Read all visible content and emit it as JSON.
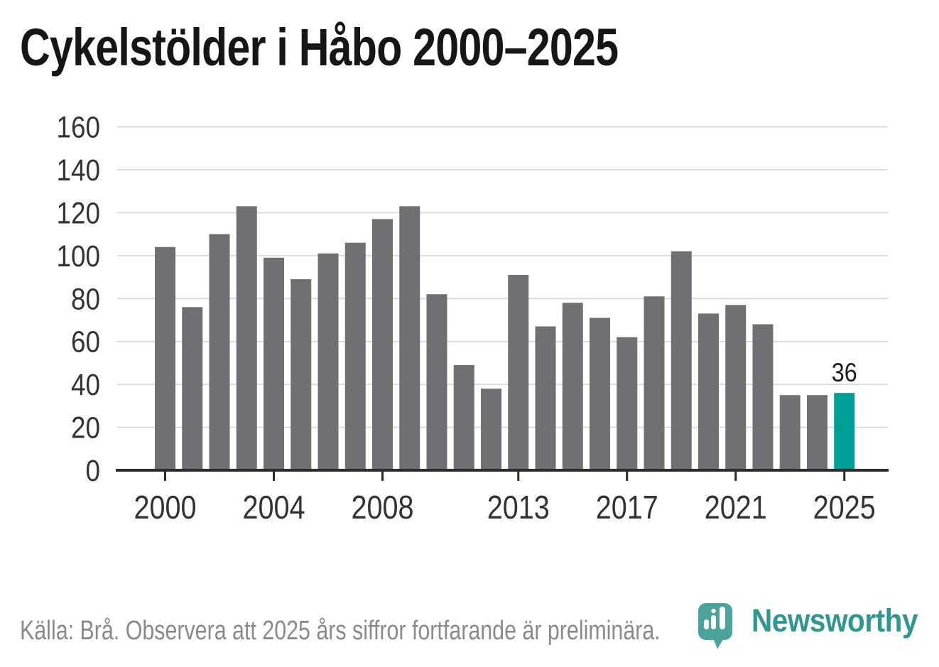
{
  "title": "Cykelstölder i Håbo 2000–2025",
  "footer": {
    "source_note": "Källa: Brå. Observera att 2025 års siffror fortfarande är preliminära.",
    "brand_name": "Newsworthy"
  },
  "colors": {
    "bar": "#706F73",
    "highlight": "#009E96",
    "gridline": "#DCDCDC",
    "axis": "#2B2B2B",
    "tick_label": "#333333",
    "value_label": "#1D1D1D",
    "title": "#161616",
    "footer_text": "#8A8A8A",
    "logo_pin": "#4BA39C",
    "logo_wordmark": "#2E978F"
  },
  "chart_data": {
    "type": "bar",
    "title": "Cykelstölder i Håbo 2000–2025",
    "x": [
      2000,
      2001,
      2002,
      2003,
      2004,
      2005,
      2006,
      2007,
      2008,
      2009,
      2010,
      2011,
      2012,
      2013,
      2014,
      2015,
      2016,
      2017,
      2018,
      2019,
      2020,
      2021,
      2022,
      2023,
      2024,
      2025
    ],
    "values": [
      104,
      76,
      110,
      123,
      99,
      89,
      101,
      106,
      117,
      123,
      82,
      49,
      38,
      91,
      67,
      78,
      71,
      62,
      81,
      102,
      73,
      77,
      68,
      35,
      35,
      36
    ],
    "xlabel": "",
    "ylabel": "",
    "xticks": [
      "2000",
      "2004",
      "2008",
      "2013",
      "2017",
      "2021",
      "2025"
    ],
    "xtick_years": [
      2000,
      2004,
      2008,
      2013,
      2017,
      2021,
      2025
    ],
    "yticks": [
      0,
      20,
      40,
      60,
      80,
      100,
      120,
      140,
      160
    ],
    "ylim": [
      0,
      160
    ],
    "grid": true,
    "legend_position": "none",
    "highlight": {
      "year": 2025,
      "value": 36,
      "label": "36"
    }
  }
}
